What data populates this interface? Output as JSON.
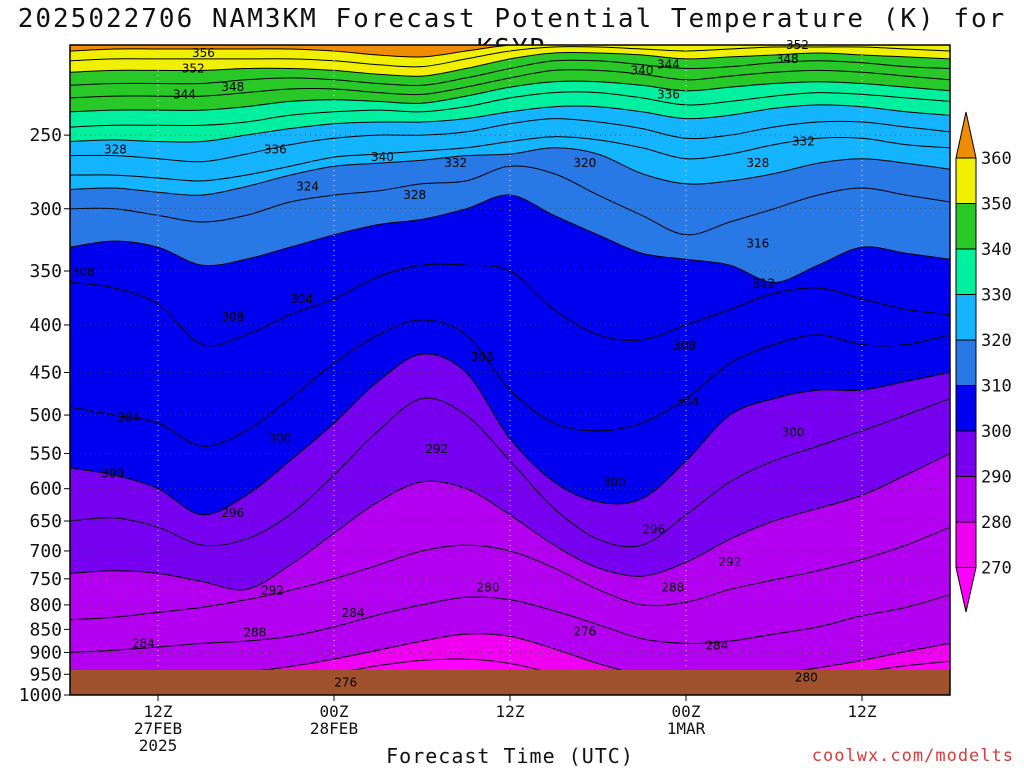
{
  "title": "2025022706 NAM3KM Forecast Potential Temperature (K) for KSYR",
  "xlabel": "Forecast Time (UTC)",
  "credit": "coolwx.com/modelts",
  "chart_data": {
    "type": "heatmap",
    "title": "2025022706 NAM3KM Forecast Potential Temperature (K) for KSYR",
    "xlabel": "Forecast Time (UTC)",
    "ylabel": "",
    "y_scale": "log",
    "y_inverted": true,
    "ylim": [
      1000,
      200
    ],
    "y_ticks": [
      250,
      300,
      350,
      400,
      450,
      500,
      550,
      600,
      650,
      700,
      750,
      800,
      850,
      900,
      950,
      1000
    ],
    "x_range_hours": [
      0,
      60
    ],
    "x_ticks": [
      {
        "hour": 6,
        "labels": [
          "12Z",
          "27FEB",
          "2025"
        ]
      },
      {
        "hour": 18,
        "labels": [
          "00Z",
          "28FEB"
        ]
      },
      {
        "hour": 30,
        "labels": [
          "12Z"
        ]
      },
      {
        "hour": 42,
        "labels": [
          "00Z",
          "1MAR"
        ]
      },
      {
        "hour": 54,
        "labels": [
          "12Z"
        ]
      }
    ],
    "grid": true,
    "contour_interval_K": 2,
    "colorbar": {
      "levels": [
        270,
        280,
        290,
        300,
        310,
        320,
        330,
        340,
        350,
        360
      ],
      "colors": [
        "#f000f0",
        "#b400f0",
        "#7800f0",
        "#0000f0",
        "#2878e6",
        "#14b4ff",
        "#00f0a0",
        "#28c828",
        "#f0f000",
        "#f0a000"
      ],
      "under_color": "#ff00ff",
      "over_color": "#f08c00"
    },
    "terrain_color": "#a0522d",
    "isentropes": [
      {
        "theta": 276,
        "p": [
          988,
          985,
          982,
          978,
          970,
          962,
          948,
          930,
          918,
          915,
          925,
          948,
          970,
          982,
          985,
          980,
          972,
          960,
          945,
          930,
          920
        ]
      },
      {
        "theta": 280,
        "p": [
          975,
          970,
          965,
          955,
          945,
          932,
          915,
          895,
          875,
          860,
          865,
          892,
          925,
          952,
          965,
          962,
          950,
          935,
          918,
          898,
          880
        ]
      },
      {
        "theta": 284,
        "p": [
          900,
          895,
          888,
          880,
          875,
          865,
          845,
          820,
          800,
          785,
          790,
          812,
          840,
          870,
          880,
          875,
          860,
          845,
          822,
          805,
          780
        ]
      },
      {
        "theta": 288,
        "p": [
          830,
          825,
          815,
          805,
          790,
          772,
          750,
          725,
          700,
          690,
          700,
          730,
          770,
          800,
          795,
          770,
          752,
          735,
          715,
          690,
          660
        ]
      },
      {
        "theta": 292,
        "p": [
          740,
          735,
          740,
          755,
          770,
          725,
          670,
          620,
          590,
          600,
          640,
          690,
          730,
          745,
          720,
          680,
          650,
          630,
          610,
          580,
          550
        ]
      },
      {
        "theta": 296,
        "p": [
          650,
          645,
          660,
          690,
          680,
          640,
          580,
          520,
          480,
          500,
          560,
          630,
          680,
          690,
          640,
          590,
          560,
          540,
          520,
          500,
          480
        ]
      },
      {
        "theta": 300,
        "p": [
          570,
          580,
          600,
          640,
          610,
          560,
          510,
          460,
          430,
          450,
          530,
          590,
          620,
          615,
          560,
          500,
          480,
          470,
          470,
          460,
          450
        ]
      },
      {
        "theta": 304,
        "p": [
          490,
          500,
          510,
          540,
          520,
          480,
          440,
          410,
          395,
          410,
          470,
          510,
          520,
          510,
          480,
          440,
          420,
          410,
          420,
          420,
          410
        ]
      },
      {
        "theta": 308,
        "p": [
          360,
          365,
          380,
          420,
          410,
          390,
          375,
          355,
          345,
          345,
          350,
          385,
          410,
          415,
          400,
          385,
          370,
          365,
          375,
          385,
          390
        ]
      },
      {
        "theta": 312,
        "p": [
          330,
          325,
          330,
          345,
          340,
          330,
          320,
          312,
          308,
          300,
          290,
          305,
          320,
          335,
          340,
          345,
          360,
          345,
          330,
          335,
          340
        ]
      },
      {
        "theta": 316,
        "p": [
          300,
          300,
          305,
          310,
          305,
          295,
          290,
          287,
          282,
          280,
          270,
          275,
          290,
          305,
          320,
          310,
          300,
          290,
          285,
          290,
          295
        ]
      },
      {
        "theta": 320,
        "p": [
          286,
          285,
          288,
          290,
          284,
          276,
          270,
          268,
          266,
          263,
          262,
          258,
          262,
          275,
          282,
          280,
          275,
          268,
          265,
          268,
          272
        ]
      },
      {
        "theta": 324,
        "p": [
          276,
          276,
          278,
          280,
          276,
          270,
          264,
          262,
          260,
          258,
          254,
          251,
          253,
          258,
          265,
          262,
          256,
          252,
          252,
          256,
          258
        ]
      },
      {
        "theta": 328,
        "p": [
          263,
          263,
          265,
          267,
          262,
          256,
          252,
          250,
          250,
          248,
          243,
          240,
          242,
          246,
          252,
          250,
          245,
          242,
          242,
          245,
          248
        ]
      },
      {
        "theta": 332,
        "p": [
          254,
          253,
          254,
          254,
          250,
          246,
          243,
          242,
          242,
          240,
          236,
          233,
          233,
          236,
          240,
          238,
          234,
          232,
          233,
          236,
          238
        ]
      },
      {
        "theta": 336,
        "p": [
          245,
          244,
          244,
          244,
          242,
          238,
          236,
          235,
          236,
          233,
          228,
          225,
          225,
          228,
          232,
          230,
          227,
          225,
          226,
          228,
          230
        ]
      },
      {
        "theta": 340,
        "p": [
          236,
          235,
          235,
          235,
          233,
          230,
          229,
          230,
          231,
          227,
          222,
          219,
          219,
          221,
          224,
          222,
          220,
          219,
          220,
          222,
          224
        ]
      },
      {
        "theta": 344,
        "p": [
          228,
          227,
          227,
          227,
          225,
          223,
          223,
          225,
          226,
          222,
          217,
          213,
          213,
          215,
          218,
          216,
          214,
          213,
          214,
          216,
          218
        ]
      },
      {
        "theta": 348,
        "p": [
          221,
          220,
          220,
          220,
          218,
          217,
          218,
          220,
          221,
          217,
          212,
          208,
          208,
          210,
          212,
          211,
          209,
          208,
          209,
          211,
          212
        ]
      },
      {
        "theta": 352,
        "p": [
          214,
          213,
          213,
          213,
          212,
          212,
          213,
          215,
          216,
          212,
          207,
          204,
          204,
          205,
          207,
          206,
          205,
          204,
          205,
          206,
          207
        ]
      },
      {
        "theta": 356,
        "p": [
          208,
          207,
          207,
          207,
          207,
          207,
          208,
          210,
          211,
          207,
          203,
          201,
          201,
          202,
          203,
          202,
          201,
          201,
          201,
          202,
          203
        ]
      },
      {
        "theta": 360,
        "p": [
          203,
          202,
          202,
          202,
          202,
          202,
          203,
          205,
          206,
          203,
          200,
          199,
          199,
          199,
          200,
          199,
          199,
          199,
          199,
          199,
          200
        ]
      }
    ],
    "contour_labels": [
      {
        "text": "356",
        "hour": 9.1,
        "p": 204
      },
      {
        "text": "352",
        "hour": 8.4,
        "p": 212
      },
      {
        "text": "348",
        "hour": 11.1,
        "p": 222
      },
      {
        "text": "344",
        "hour": 7.8,
        "p": 226
      },
      {
        "text": "328",
        "hour": 3.1,
        "p": 259
      },
      {
        "text": "336",
        "hour": 14.0,
        "p": 259
      },
      {
        "text": "340",
        "hour": 21.3,
        "p": 264
      },
      {
        "text": "332",
        "hour": 26.3,
        "p": 268
      },
      {
        "text": "320",
        "hour": 35.1,
        "p": 268
      },
      {
        "text": "324",
        "hour": 16.2,
        "p": 284
      },
      {
        "text": "328",
        "hour": 23.5,
        "p": 290
      },
      {
        "text": "352",
        "hour": 49.6,
        "p": 200
      },
      {
        "text": "348",
        "hour": 48.9,
        "p": 207
      },
      {
        "text": "344",
        "hour": 40.8,
        "p": 210
      },
      {
        "text": "340",
        "hour": 39.0,
        "p": 213
      },
      {
        "text": "336",
        "hour": 40.8,
        "p": 226
      },
      {
        "text": "332",
        "hour": 50.0,
        "p": 254
      },
      {
        "text": "328",
        "hour": 46.9,
        "p": 268
      },
      {
        "text": "316",
        "hour": 46.9,
        "p": 327
      },
      {
        "text": "312",
        "hour": 47.3,
        "p": 361
      },
      {
        "text": "308",
        "hour": 0.9,
        "p": 351
      },
      {
        "text": "308",
        "hour": 11.1,
        "p": 392
      },
      {
        "text": "304",
        "hour": 15.8,
        "p": 375
      },
      {
        "text": "308",
        "hour": 28.1,
        "p": 433
      },
      {
        "text": "308",
        "hour": 41.9,
        "p": 421
      },
      {
        "text": "304",
        "hour": 42.1,
        "p": 484
      },
      {
        "text": "304",
        "hour": 4.0,
        "p": 503
      },
      {
        "text": "300",
        "hour": 14.3,
        "p": 530
      },
      {
        "text": "300",
        "hour": 2.9,
        "p": 578
      },
      {
        "text": "292",
        "hour": 25.0,
        "p": 544
      },
      {
        "text": "300",
        "hour": 37.1,
        "p": 590
      },
      {
        "text": "300",
        "hour": 49.3,
        "p": 522
      },
      {
        "text": "296",
        "hour": 11.1,
        "p": 637
      },
      {
        "text": "296",
        "hour": 39.8,
        "p": 664
      },
      {
        "text": "292",
        "hour": 45.0,
        "p": 719
      },
      {
        "text": "292",
        "hour": 13.8,
        "p": 772
      },
      {
        "text": "288",
        "hour": 41.1,
        "p": 766
      },
      {
        "text": "280",
        "hour": 28.5,
        "p": 766
      },
      {
        "text": "284",
        "hour": 19.3,
        "p": 816
      },
      {
        "text": "288",
        "hour": 12.6,
        "p": 857
      },
      {
        "text": "284",
        "hour": 5.0,
        "p": 880
      },
      {
        "text": "276",
        "hour": 35.1,
        "p": 854
      },
      {
        "text": "284",
        "hour": 44.1,
        "p": 885
      },
      {
        "text": "276",
        "hour": 18.8,
        "p": 970
      },
      {
        "text": "280",
        "hour": 50.2,
        "p": 958
      }
    ]
  }
}
